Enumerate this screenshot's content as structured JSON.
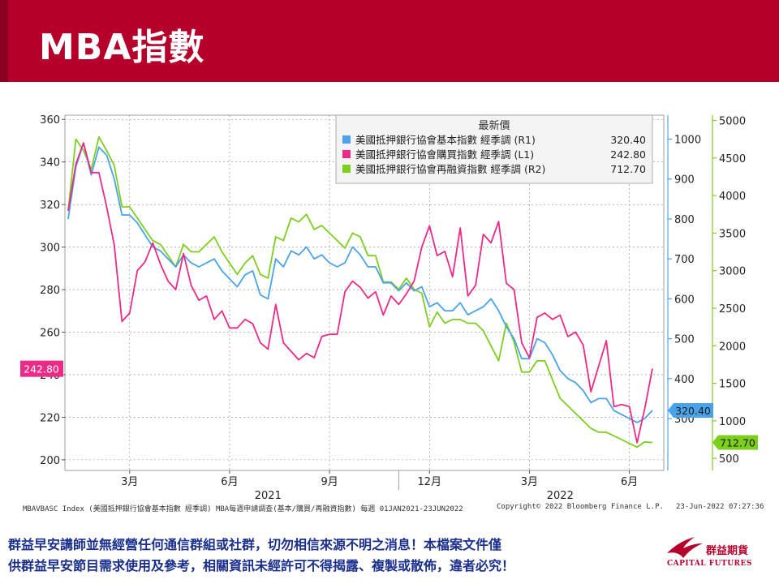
{
  "page_title": "MBA指數",
  "chart_data": {
    "type": "line",
    "legend": {
      "title": "最新價",
      "placement": "top-right",
      "entries": [
        {
          "name": "美國抵押銀行協會基本指數 經季調 (R1)",
          "value_label": "320.40",
          "color": "#4aa3ea",
          "axis": "R1"
        },
        {
          "name": "美國抵押銀行協會購買指數 經季調 (L1)",
          "value_label": "242.80",
          "color": "#ec2a88",
          "axis": "L1"
        },
        {
          "name": "美國抵押銀行協會再融資指數 經季調 (R2)",
          "value_label": "712.70",
          "color": "#7ccf1f",
          "axis": "R2"
        }
      ]
    },
    "x_ticks": [
      {
        "label": "3月",
        "week": 8
      },
      {
        "label": "6月",
        "week": 21
      },
      {
        "label": "9月",
        "week": 34
      },
      {
        "label": "12月",
        "week": 47
      },
      {
        "label": "3月",
        "week": 60
      },
      {
        "label": "6月",
        "week": 73
      }
    ],
    "year_labels": [
      {
        "label": "2021",
        "week": 26
      },
      {
        "label": "2022",
        "week": 64
      }
    ],
    "axes": {
      "left": {
        "ylim": [
          195,
          362
        ],
        "ticks": [
          200,
          220,
          240,
          260,
          280,
          300,
          320,
          340,
          360
        ]
      },
      "right1": {
        "ylim": [
          170,
          1060
        ],
        "ticks": [
          300,
          400,
          500,
          600,
          700,
          800,
          900,
          1000
        ]
      },
      "right2": {
        "ylim": [
          340,
          5070
        ],
        "ticks": [
          500,
          1000,
          1500,
          2000,
          2500,
          3000,
          3500,
          4000,
          4500,
          5000
        ]
      }
    },
    "grid": true,
    "last_value_tags": {
      "left": "242.80",
      "right1": "320.40",
      "right2": "712.70"
    },
    "series": [
      {
        "name": "美國抵押銀行協會購買指數 經季調 (L1)",
        "axis": "left",
        "color": "#ec2a88",
        "values": [
          317,
          339,
          349,
          335,
          335,
          319,
          301,
          265,
          269,
          289,
          293,
          302,
          292,
          284,
          280,
          297,
          282,
          275,
          277,
          266,
          270,
          262,
          262,
          266,
          264,
          255,
          252,
          273,
          255,
          251,
          247,
          250,
          248,
          258,
          259,
          259,
          279,
          284,
          281,
          276,
          279,
          268,
          277,
          273,
          278,
          284,
          300,
          310,
          296,
          298,
          286,
          309,
          277,
          282,
          306,
          302,
          312,
          283,
          280,
          255,
          248,
          267,
          269,
          266,
          268,
          258,
          260,
          254,
          232,
          244,
          256,
          225,
          226,
          225,
          208,
          224,
          242.8
        ]
      },
      {
        "name": "美國抵押銀行協會基本指數 經季調 (R1)",
        "axis": "right1",
        "color": "#4aa3ea",
        "values": [
          800,
          930,
          990,
          910,
          980,
          960,
          900,
          810,
          810,
          790,
          760,
          730,
          720,
          700,
          680,
          710,
          690,
          680,
          690,
          700,
          670,
          650,
          630,
          660,
          670,
          610,
          600,
          700,
          680,
          720,
          710,
          730,
          700,
          710,
          690,
          680,
          690,
          730,
          710,
          680,
          680,
          640,
          640,
          620,
          640,
          620,
          630,
          580,
          590,
          570,
          570,
          590,
          560,
          570,
          580,
          600,
          570,
          530,
          500,
          450,
          450,
          500,
          490,
          460,
          420,
          400,
          390,
          370,
          340,
          350,
          350,
          320,
          310,
          300,
          290,
          300,
          320.4
        ]
      },
      {
        "name": "美國抵押銀行協會再融資指數 經季調 (R2)",
        "axis": "right2",
        "color": "#7ccf1f",
        "values": [
          3800,
          4750,
          4600,
          4350,
          4780,
          4600,
          4400,
          3850,
          3850,
          3700,
          3550,
          3400,
          3350,
          3200,
          3050,
          3350,
          3250,
          3250,
          3350,
          3450,
          3250,
          3100,
          2950,
          3100,
          3200,
          2950,
          2900,
          3450,
          3400,
          3700,
          3650,
          3750,
          3550,
          3600,
          3500,
          3400,
          3300,
          3500,
          3450,
          3200,
          3200,
          2850,
          2850,
          2750,
          2900,
          2750,
          2700,
          2250,
          2450,
          2300,
          2350,
          2350,
          2300,
          2300,
          2200,
          2000,
          1800,
          2300,
          2050,
          1650,
          1650,
          1800,
          1800,
          1550,
          1300,
          1200,
          1100,
          1000,
          900,
          850,
          850,
          800,
          750,
          700,
          650,
          720,
          712.7
        ]
      }
    ]
  },
  "footer": {
    "source": "MBAVBASC Index (美國抵押銀行協會基本指數 經季調) MBA每週申請調查(基本/購買/再融資指數)  每週 01JAN2021-23JUN2022",
    "copyright": "Copyright© 2022 Bloomberg Finance L.P.",
    "timestamp": "23-Jun-2022 07:27:36"
  },
  "disclaimer": {
    "line1": "群益早安講師並無經營任何通信群組或社群，切勿相信來源不明之消息！本檔案文件僅",
    "line2": "供群益早安節目需求使用及參考，相關資訊未經許可不得揭露、複製或散佈，違者必究！"
  },
  "logo": {
    "name_cn": "群益期貨",
    "name_en": "CAPITAL FUTURES"
  }
}
